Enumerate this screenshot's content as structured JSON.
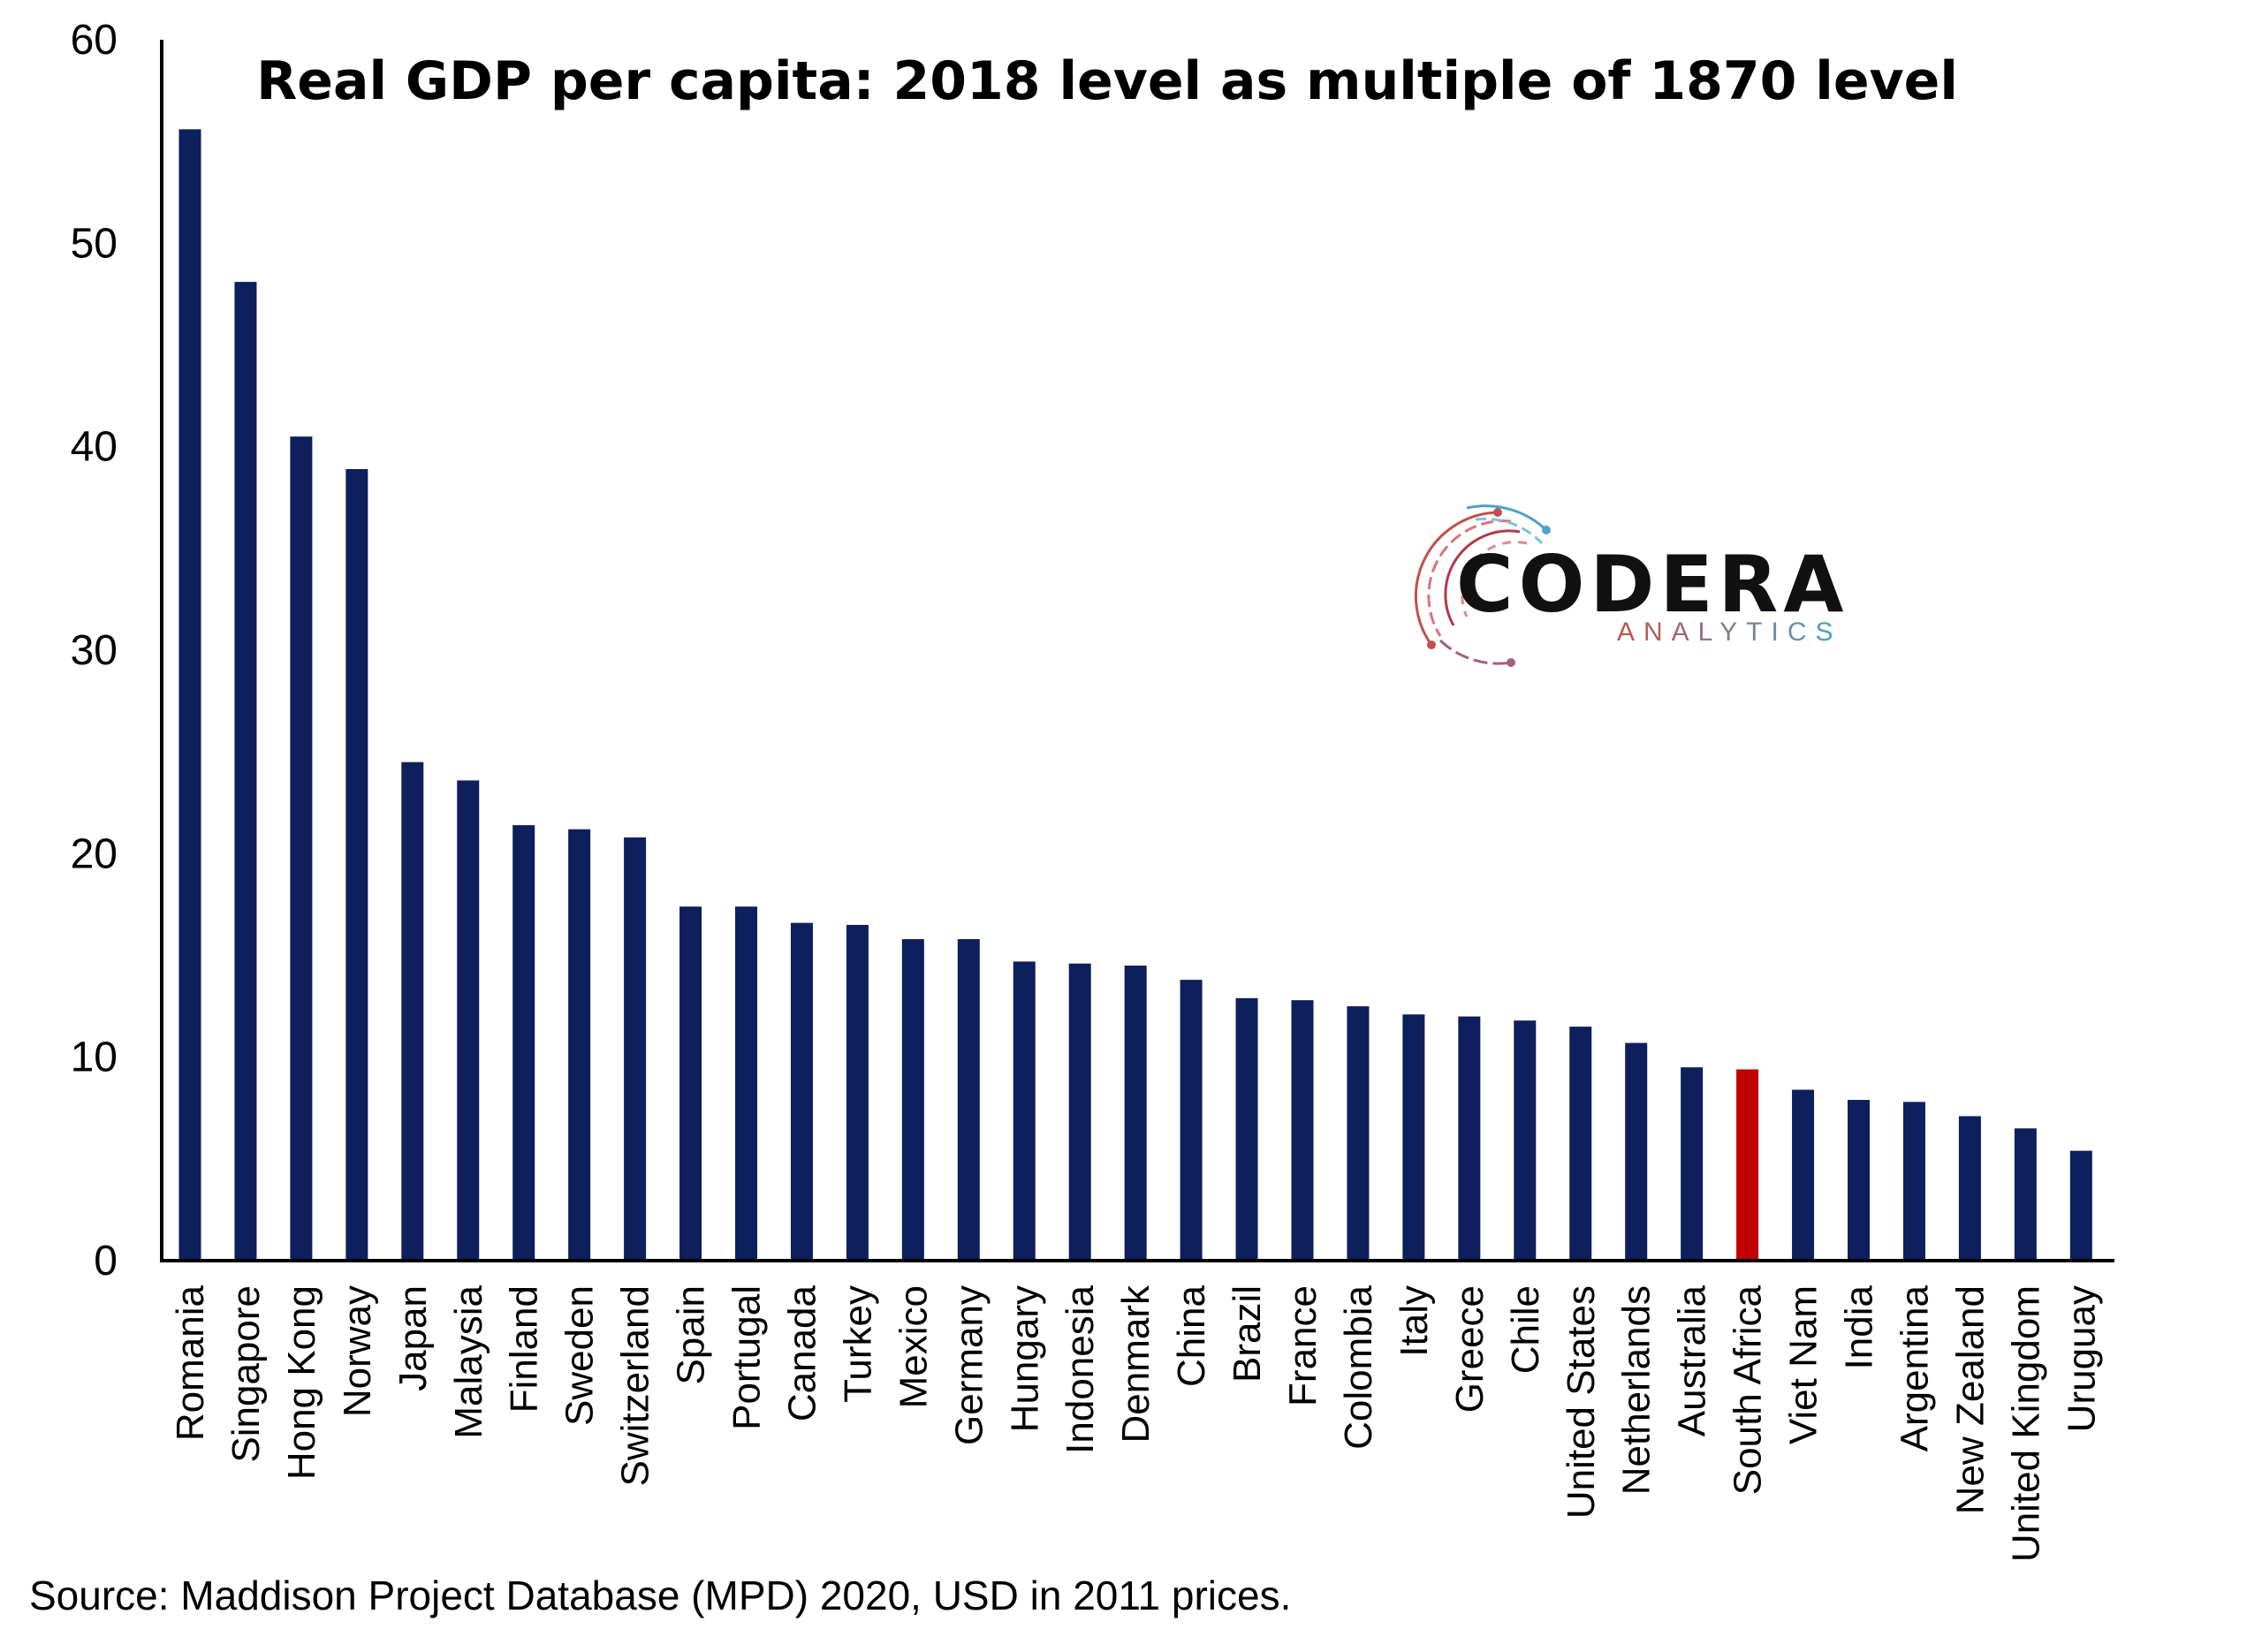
{
  "chart_data": {
    "type": "bar",
    "title": "Real GDP per capita: 2018 level as multiple of 1870 level",
    "xlabel": "",
    "ylabel": "",
    "ylim": [
      0,
      60
    ],
    "yticks": [
      0,
      10,
      20,
      30,
      40,
      50,
      60
    ],
    "grid": false,
    "categories": [
      "Romania",
      "Singapore",
      "Hong Kong",
      "Norway",
      "Japan",
      "Malaysia",
      "Finland",
      "Sweden",
      "Switzerland",
      "Spain",
      "Portugal",
      "Canada",
      "Turkey",
      "Mexico",
      "Germany",
      "Hungary",
      "Indonesia",
      "Denmark",
      "China",
      "Brazil",
      "France",
      "Colombia",
      "Italy",
      "Greece",
      "Chile",
      "United States",
      "Netherlands",
      "Australia",
      "South Africa",
      "Viet Nam",
      "India",
      "Argentina",
      "New Zealand",
      "United Kingdom",
      "Uruguay"
    ],
    "values": [
      55.6,
      48.1,
      40.5,
      38.9,
      24.5,
      23.6,
      21.4,
      21.2,
      20.8,
      17.4,
      17.4,
      16.6,
      16.5,
      15.8,
      15.8,
      14.7,
      14.6,
      14.5,
      13.8,
      12.9,
      12.8,
      12.5,
      12.1,
      12.0,
      11.8,
      11.5,
      10.7,
      9.5,
      9.4,
      8.4,
      7.9,
      7.8,
      7.1,
      6.5,
      5.4
    ],
    "bar_color": "#0d1f5c",
    "highlight_color": "#c00000",
    "highlight_category": "South Africa"
  },
  "source": "Source: Maddison Project Database (MPD) 2020, USD in 2011 prices.",
  "logo": {
    "name": "CODERA",
    "sub": "ANALYTICS",
    "text_color": "#111111",
    "sub_color_left": "#c0504d",
    "sub_color_right": "#4aa3c8"
  }
}
